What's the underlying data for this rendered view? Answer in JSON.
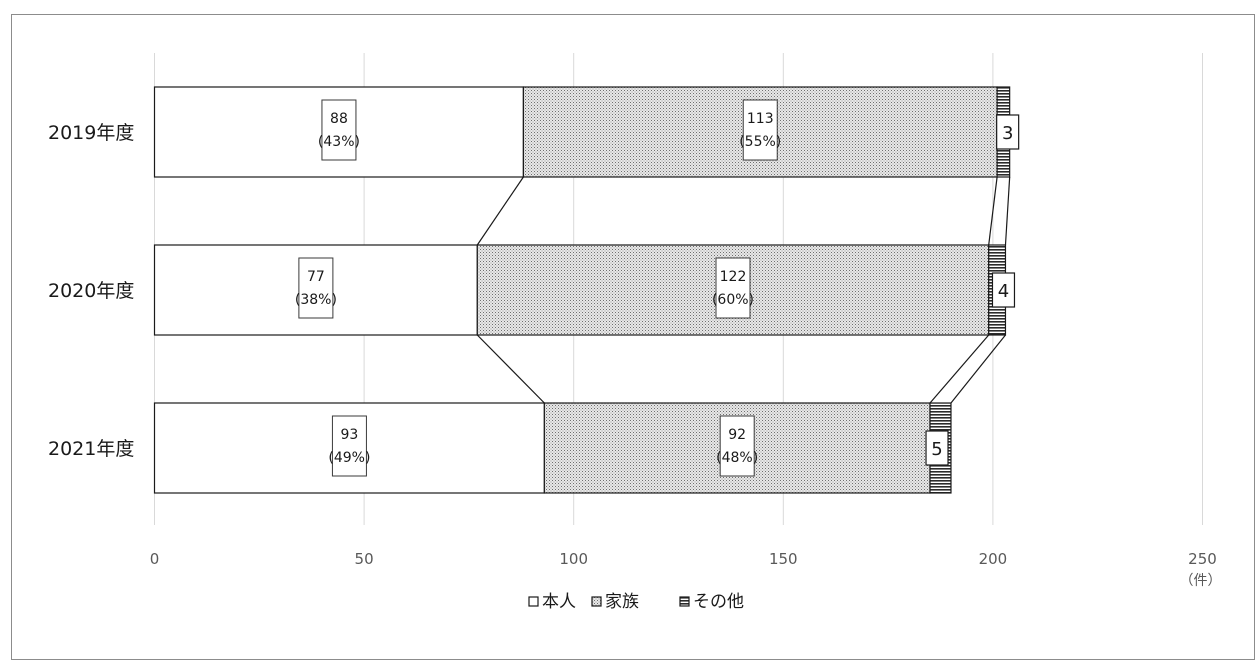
{
  "chart_data": {
    "type": "bar",
    "orientation": "horizontal",
    "stacked": true,
    "categories": [
      "2019年度",
      "2020年度",
      "2021年度"
    ],
    "series": [
      {
        "name": "本人",
        "values": [
          88,
          77,
          93
        ],
        "percent_labels": [
          "(43%)",
          "(38%)",
          "(49%)"
        ],
        "fill": "#ffffff",
        "pattern": "none"
      },
      {
        "name": "家族",
        "values": [
          113,
          122,
          92
        ],
        "percent_labels": [
          "(55%)",
          "(60%)",
          "(48%)"
        ],
        "fill": "#d9d9d9",
        "pattern": "dots"
      },
      {
        "name": "その他",
        "values": [
          3,
          4,
          5
        ],
        "percent_labels": [
          "",
          "",
          ""
        ],
        "fill": "#404040",
        "pattern": "horizontal-lines"
      }
    ],
    "x_ticks": [
      "0",
      "50",
      "100",
      "150",
      "200",
      "250"
    ],
    "x_unit": "（件）",
    "xlim": [
      0,
      250
    ],
    "grid": true,
    "series_lines": true,
    "legend_position": "bottom",
    "colors": {
      "grid": "#d9d9d9",
      "bar_outline": "#1a1a1a",
      "tick_text": "#595959"
    }
  }
}
